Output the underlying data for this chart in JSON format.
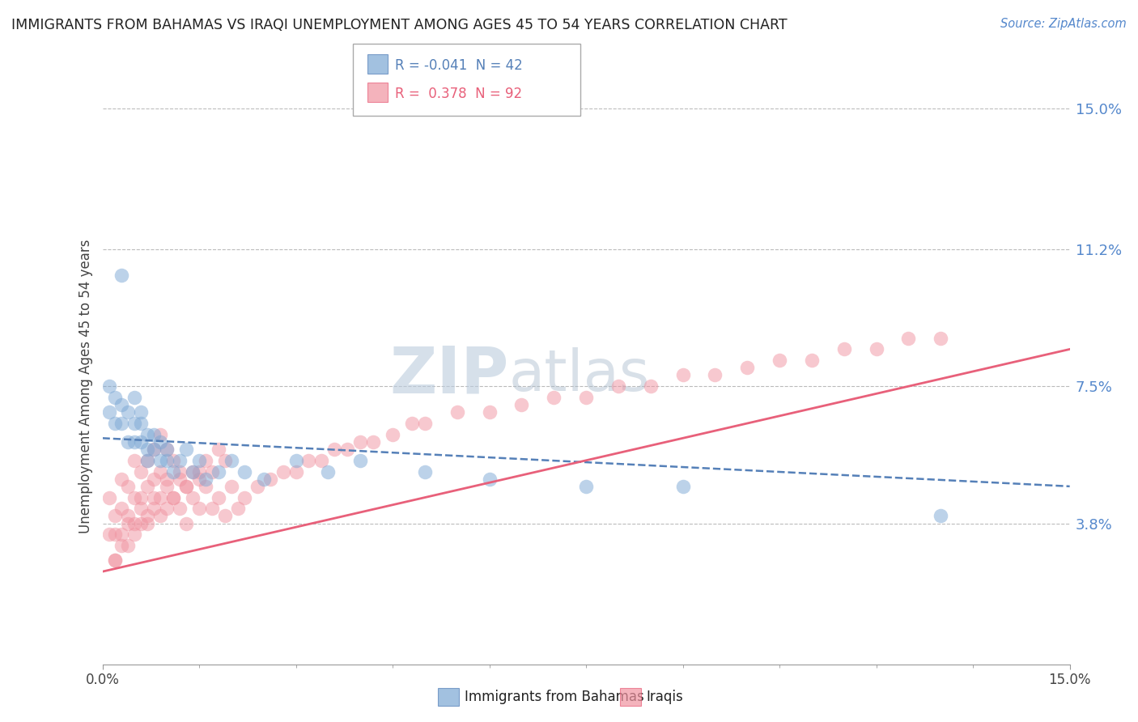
{
  "title": "IMMIGRANTS FROM BAHAMAS VS IRAQI UNEMPLOYMENT AMONG AGES 45 TO 54 YEARS CORRELATION CHART",
  "source": "Source: ZipAtlas.com",
  "ylabel": "Unemployment Among Ages 45 to 54 years",
  "xlim": [
    0.0,
    0.15
  ],
  "ylim": [
    0.0,
    0.15
  ],
  "ytick_values": [
    0.038,
    0.075,
    0.112,
    0.15
  ],
  "ytick_labels": [
    "3.8%",
    "7.5%",
    "11.2%",
    "15.0%"
  ],
  "legend1_r": "-0.041",
  "legend1_n": "42",
  "legend2_r": "0.378",
  "legend2_n": "92",
  "legend1_label": "Immigrants from Bahamas",
  "legend2_label": "Iraqis",
  "blue_color": "#7BA7D4",
  "pink_color": "#F093A0",
  "blue_line_color": "#5580B8",
  "pink_line_color": "#E8607A",
  "watermark_color": "#C8D8E8",
  "blue_trend_x0": 0.0,
  "blue_trend_y0": 0.061,
  "blue_trend_x1": 0.15,
  "blue_trend_y1": 0.048,
  "pink_trend_x0": 0.0,
  "pink_trend_y0": 0.025,
  "pink_trend_x1": 0.15,
  "pink_trend_y1": 0.085,
  "blue_scatter_x": [
    0.001,
    0.001,
    0.002,
    0.002,
    0.003,
    0.003,
    0.003,
    0.004,
    0.004,
    0.005,
    0.005,
    0.005,
    0.006,
    0.006,
    0.006,
    0.007,
    0.007,
    0.007,
    0.008,
    0.008,
    0.009,
    0.009,
    0.01,
    0.01,
    0.011,
    0.012,
    0.013,
    0.014,
    0.015,
    0.016,
    0.018,
    0.02,
    0.022,
    0.025,
    0.03,
    0.035,
    0.04,
    0.05,
    0.06,
    0.075,
    0.09,
    0.13
  ],
  "blue_scatter_y": [
    0.075,
    0.068,
    0.072,
    0.065,
    0.105,
    0.07,
    0.065,
    0.068,
    0.06,
    0.072,
    0.065,
    0.06,
    0.068,
    0.065,
    0.06,
    0.062,
    0.058,
    0.055,
    0.062,
    0.058,
    0.06,
    0.055,
    0.058,
    0.055,
    0.052,
    0.055,
    0.058,
    0.052,
    0.055,
    0.05,
    0.052,
    0.055,
    0.052,
    0.05,
    0.055,
    0.052,
    0.055,
    0.052,
    0.05,
    0.048,
    0.048,
    0.04
  ],
  "pink_scatter_x": [
    0.001,
    0.001,
    0.002,
    0.002,
    0.002,
    0.003,
    0.003,
    0.003,
    0.004,
    0.004,
    0.004,
    0.005,
    0.005,
    0.005,
    0.006,
    0.006,
    0.006,
    0.007,
    0.007,
    0.007,
    0.008,
    0.008,
    0.008,
    0.009,
    0.009,
    0.009,
    0.01,
    0.01,
    0.01,
    0.011,
    0.011,
    0.012,
    0.012,
    0.013,
    0.013,
    0.014,
    0.015,
    0.015,
    0.016,
    0.017,
    0.018,
    0.019,
    0.02,
    0.021,
    0.022,
    0.024,
    0.026,
    0.028,
    0.03,
    0.032,
    0.034,
    0.036,
    0.038,
    0.04,
    0.042,
    0.045,
    0.048,
    0.05,
    0.055,
    0.06,
    0.065,
    0.07,
    0.075,
    0.08,
    0.085,
    0.09,
    0.095,
    0.1,
    0.105,
    0.11,
    0.115,
    0.12,
    0.125,
    0.13,
    0.002,
    0.003,
    0.004,
    0.005,
    0.006,
    0.007,
    0.008,
    0.009,
    0.01,
    0.011,
    0.012,
    0.013,
    0.014,
    0.015,
    0.016,
    0.017,
    0.018,
    0.019
  ],
  "pink_scatter_y": [
    0.045,
    0.035,
    0.04,
    0.035,
    0.028,
    0.05,
    0.042,
    0.035,
    0.048,
    0.04,
    0.032,
    0.055,
    0.045,
    0.038,
    0.052,
    0.045,
    0.038,
    0.055,
    0.048,
    0.04,
    0.058,
    0.05,
    0.042,
    0.062,
    0.052,
    0.045,
    0.058,
    0.05,
    0.042,
    0.055,
    0.045,
    0.052,
    0.042,
    0.048,
    0.038,
    0.045,
    0.052,
    0.042,
    0.048,
    0.042,
    0.045,
    0.04,
    0.048,
    0.042,
    0.045,
    0.048,
    0.05,
    0.052,
    0.052,
    0.055,
    0.055,
    0.058,
    0.058,
    0.06,
    0.06,
    0.062,
    0.065,
    0.065,
    0.068,
    0.068,
    0.07,
    0.072,
    0.072,
    0.075,
    0.075,
    0.078,
    0.078,
    0.08,
    0.082,
    0.082,
    0.085,
    0.085,
    0.088,
    0.088,
    0.028,
    0.032,
    0.038,
    0.035,
    0.042,
    0.038,
    0.045,
    0.04,
    0.048,
    0.045,
    0.05,
    0.048,
    0.052,
    0.05,
    0.055,
    0.052,
    0.058,
    0.055
  ]
}
